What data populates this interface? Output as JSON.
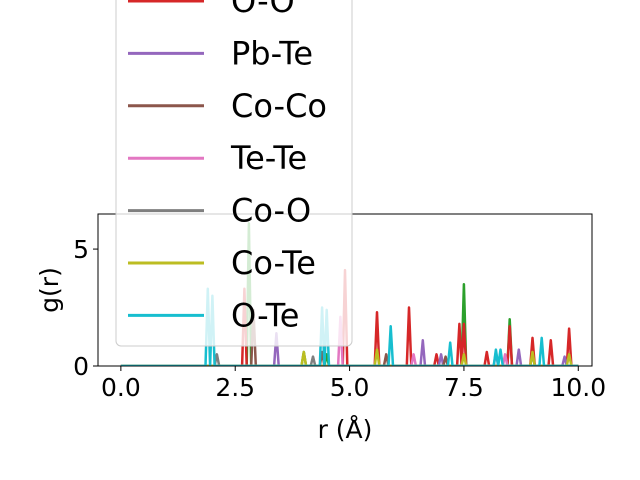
{
  "chart_data": {
    "type": "line",
    "xlabel": "r (Å)",
    "ylabel": "g(r)",
    "xlim": [
      -0.5,
      10.3
    ],
    "ylim": [
      0,
      6.5
    ],
    "xticks": [
      0.0,
      2.5,
      5.0,
      7.5,
      10.0
    ],
    "xtick_labels": [
      "0.0",
      "2.5",
      "5.0",
      "7.5",
      "10.0"
    ],
    "yticks": [
      0,
      5
    ],
    "ytick_labels": [
      "0",
      "5"
    ],
    "grid": false,
    "legend_position": "upper-left, extending above the axes",
    "legend_entries_visible": [
      "O-O",
      "Pb-Te",
      "Co-Co",
      "Te-Te",
      "Co-O",
      "Co-Te",
      "O-Te"
    ],
    "series": [
      {
        "name": "",
        "color": "#2ca02c",
        "peaks": [
          [
            2.8,
            6.1
          ],
          [
            4.0,
            0.6
          ],
          [
            4.5,
            0.5
          ],
          [
            7.5,
            3.5
          ],
          [
            8.5,
            2.0
          ],
          [
            9.0,
            0.6
          ]
        ]
      },
      {
        "name": "O-O",
        "color": "#d62728",
        "peaks": [
          [
            2.7,
            3.3
          ],
          [
            4.9,
            4.1
          ],
          [
            5.6,
            2.3
          ],
          [
            6.3,
            2.5
          ],
          [
            6.9,
            0.5
          ],
          [
            7.4,
            1.8
          ],
          [
            7.5,
            1.8
          ],
          [
            8.0,
            0.6
          ],
          [
            8.5,
            1.7
          ],
          [
            9.0,
            1.2
          ],
          [
            9.4,
            1.1
          ],
          [
            9.8,
            1.6
          ]
        ]
      },
      {
        "name": "Pb-Te",
        "color": "#9467bd",
        "peaks": [
          [
            3.4,
            1.4
          ],
          [
            6.6,
            1.1
          ],
          [
            7.0,
            0.5
          ],
          [
            8.2,
            0.6
          ],
          [
            8.7,
            0.7
          ],
          [
            9.7,
            0.4
          ]
        ]
      },
      {
        "name": "Co-Co",
        "color": "#8c564b",
        "peaks": [
          [
            2.9,
            2.4
          ],
          [
            4.4,
            0.6
          ],
          [
            5.8,
            0.5
          ],
          [
            7.1,
            0.4
          ]
        ]
      },
      {
        "name": "Te-Te",
        "color": "#e377c2",
        "peaks": [
          [
            4.8,
            2.1
          ],
          [
            6.4,
            0.5
          ],
          [
            8.4,
            0.5
          ]
        ]
      },
      {
        "name": "Co-O",
        "color": "#7f7f7f",
        "peaks": [
          [
            2.1,
            0.5
          ],
          [
            4.2,
            0.4
          ]
        ]
      },
      {
        "name": "Co-Te",
        "color": "#bcbd22",
        "peaks": [
          [
            4.0,
            0.6
          ],
          [
            5.6,
            0.7
          ],
          [
            7.5,
            0.5
          ],
          [
            9.0,
            0.6
          ],
          [
            9.8,
            0.5
          ]
        ]
      },
      {
        "name": "O-Te",
        "color": "#17becf",
        "peaks": [
          [
            1.9,
            3.3
          ],
          [
            2.0,
            3.0
          ],
          [
            4.4,
            2.5
          ],
          [
            4.5,
            2.4
          ],
          [
            5.9,
            1.7
          ],
          [
            7.2,
            1.0
          ],
          [
            8.2,
            0.7
          ],
          [
            8.3,
            0.7
          ],
          [
            9.2,
            1.2
          ]
        ]
      }
    ]
  }
}
